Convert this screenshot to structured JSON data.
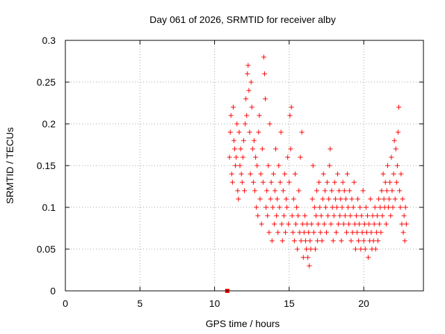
{
  "chart_data": {
    "type": "scatter",
    "title": "Day 061 of 2026, SRMTID for receiver alby",
    "xlabel": "GPS time / hours",
    "ylabel": "SRMTID / TECUs",
    "xlim": [
      0,
      24
    ],
    "ylim": [
      0,
      0.3
    ],
    "x_ticks": [
      0,
      5,
      10,
      15,
      20
    ],
    "x_tick_labels": [
      "0",
      "5",
      "10",
      "15",
      "20"
    ],
    "y_ticks": [
      0,
      0.05,
      0.1,
      0.15,
      0.2,
      0.25,
      0.3
    ],
    "y_tick_labels": [
      "0",
      "0.05",
      "0.1",
      "0.15",
      "0.2",
      "0.25",
      "0.3"
    ],
    "grid": true,
    "legend": "none",
    "colors": {
      "points": "#ff0000",
      "frame": "#000000",
      "grid": "#a0a0a0"
    },
    "marker": "plus",
    "zero_marker": {
      "x": 10.85,
      "y": 0.0,
      "marker": "square"
    },
    "series": [
      {
        "points": [
          [
            11.0,
            0.16
          ],
          [
            11.05,
            0.19
          ],
          [
            11.1,
            0.21
          ],
          [
            11.15,
            0.14
          ],
          [
            11.2,
            0.13
          ],
          [
            11.25,
            0.22
          ],
          [
            11.3,
            0.18
          ],
          [
            11.35,
            0.17
          ],
          [
            11.4,
            0.15
          ],
          [
            11.45,
            0.16
          ],
          [
            11.5,
            0.2
          ],
          [
            11.55,
            0.12
          ],
          [
            11.6,
            0.11
          ],
          [
            11.65,
            0.19
          ],
          [
            11.7,
            0.15
          ],
          [
            11.75,
            0.17
          ],
          [
            11.8,
            0.14
          ],
          [
            11.85,
            0.13
          ],
          [
            11.9,
            0.16
          ],
          [
            11.95,
            0.18
          ],
          [
            12.0,
            0.12
          ],
          [
            12.05,
            0.2
          ],
          [
            12.1,
            0.23
          ],
          [
            12.15,
            0.21
          ],
          [
            12.2,
            0.26
          ],
          [
            12.25,
            0.27
          ],
          [
            12.3,
            0.24
          ],
          [
            12.35,
            0.19
          ],
          [
            12.4,
            0.14
          ],
          [
            12.45,
            0.25
          ],
          [
            12.5,
            0.22
          ],
          [
            12.55,
            0.17
          ],
          [
            12.6,
            0.13
          ],
          [
            12.65,
            0.18
          ],
          [
            12.7,
            0.12
          ],
          [
            12.75,
            0.16
          ],
          [
            12.8,
            0.1
          ],
          [
            12.85,
            0.15
          ],
          [
            12.9,
            0.09
          ],
          [
            12.95,
            0.19
          ],
          [
            13.0,
            0.21
          ],
          [
            13.05,
            0.11
          ],
          [
            13.1,
            0.14
          ],
          [
            13.15,
            0.08
          ],
          [
            13.2,
            0.17
          ],
          [
            13.25,
            0.13
          ],
          [
            13.3,
            0.28
          ],
          [
            13.35,
            0.26
          ],
          [
            13.4,
            0.23
          ],
          [
            13.45,
            0.1
          ],
          [
            13.5,
            0.12
          ],
          [
            13.55,
            0.09
          ],
          [
            13.6,
            0.15
          ],
          [
            13.65,
            0.07
          ],
          [
            13.7,
            0.2
          ],
          [
            13.75,
            0.11
          ],
          [
            13.8,
            0.13
          ],
          [
            13.85,
            0.06
          ],
          [
            13.9,
            0.1
          ],
          [
            13.95,
            0.14
          ],
          [
            14.0,
            0.08
          ],
          [
            14.05,
            0.12
          ],
          [
            14.1,
            0.17
          ],
          [
            14.15,
            0.09
          ],
          [
            14.2,
            0.11
          ],
          [
            14.25,
            0.07
          ],
          [
            14.3,
            0.15
          ],
          [
            14.35,
            0.1
          ],
          [
            14.4,
            0.13
          ],
          [
            14.45,
            0.19
          ],
          [
            14.5,
            0.08
          ],
          [
            14.55,
            0.06
          ],
          [
            14.6,
            0.12
          ],
          [
            14.65,
            0.09
          ],
          [
            14.7,
            0.14
          ],
          [
            14.75,
            0.07
          ],
          [
            14.8,
            0.11
          ],
          [
            14.85,
            0.1
          ],
          [
            14.9,
            0.16
          ],
          [
            14.95,
            0.08
          ],
          [
            15.0,
            0.13
          ],
          [
            15.05,
            0.21
          ],
          [
            15.1,
            0.17
          ],
          [
            15.15,
            0.22
          ],
          [
            15.2,
            0.09
          ],
          [
            15.25,
            0.07
          ],
          [
            15.3,
            0.11
          ],
          [
            15.35,
            0.06
          ],
          [
            15.4,
            0.14
          ],
          [
            15.45,
            0.08
          ],
          [
            15.5,
            0.1
          ],
          [
            15.55,
            0.05
          ],
          [
            15.6,
            0.09
          ],
          [
            15.65,
            0.12
          ],
          [
            15.7,
            0.07
          ],
          [
            15.75,
            0.16
          ],
          [
            15.8,
            0.06
          ],
          [
            15.85,
            0.19
          ],
          [
            15.9,
            0.08
          ],
          [
            15.95,
            0.04
          ],
          [
            16.0,
            0.07
          ],
          [
            16.05,
            0.09
          ],
          [
            16.1,
            0.06
          ],
          [
            16.15,
            0.05
          ],
          [
            16.2,
            0.08
          ],
          [
            16.25,
            0.04
          ],
          [
            16.3,
            0.07
          ],
          [
            16.35,
            0.03
          ],
          [
            16.4,
            0.06
          ],
          [
            16.45,
            0.05
          ],
          [
            16.5,
            0.08
          ],
          [
            16.55,
            0.11
          ],
          [
            16.6,
            0.15
          ],
          [
            16.65,
            0.07
          ],
          [
            16.7,
            0.1
          ],
          [
            16.75,
            0.05
          ],
          [
            16.8,
            0.09
          ],
          [
            16.85,
            0.12
          ],
          [
            16.9,
            0.06
          ],
          [
            16.95,
            0.08
          ],
          [
            17.0,
            0.13
          ],
          [
            17.05,
            0.1
          ],
          [
            17.1,
            0.07
          ],
          [
            17.15,
            0.09
          ],
          [
            17.2,
            0.06
          ],
          [
            17.25,
            0.11
          ],
          [
            17.3,
            0.14
          ],
          [
            17.35,
            0.08
          ],
          [
            17.4,
            0.12
          ],
          [
            17.45,
            0.1
          ],
          [
            17.5,
            0.07
          ],
          [
            17.55,
            0.13
          ],
          [
            17.6,
            0.09
          ],
          [
            17.65,
            0.11
          ],
          [
            17.7,
            0.15
          ],
          [
            17.75,
            0.17
          ],
          [
            17.8,
            0.08
          ],
          [
            17.85,
            0.12
          ],
          [
            17.9,
            0.1
          ],
          [
            17.95,
            0.06
          ],
          [
            18.0,
            0.09
          ],
          [
            18.05,
            0.13
          ],
          [
            18.1,
            0.11
          ],
          [
            18.15,
            0.07
          ],
          [
            18.2,
            0.1
          ],
          [
            18.25,
            0.14
          ],
          [
            18.3,
            0.08
          ],
          [
            18.35,
            0.12
          ],
          [
            18.4,
            0.09
          ],
          [
            18.45,
            0.11
          ],
          [
            18.5,
            0.06
          ],
          [
            18.55,
            0.1
          ],
          [
            18.6,
            0.13
          ],
          [
            18.65,
            0.08
          ],
          [
            18.7,
            0.12
          ],
          [
            18.75,
            0.09
          ],
          [
            18.8,
            0.11
          ],
          [
            18.85,
            0.07
          ],
          [
            18.9,
            0.14
          ],
          [
            18.95,
            0.1
          ],
          [
            19.0,
            0.08
          ],
          [
            19.05,
            0.12
          ],
          [
            19.1,
            0.09
          ],
          [
            19.15,
            0.06
          ],
          [
            19.2,
            0.11
          ],
          [
            19.25,
            0.07
          ],
          [
            19.3,
            0.1
          ],
          [
            19.35,
            0.13
          ],
          [
            19.4,
            0.08
          ],
          [
            19.45,
            0.05
          ],
          [
            19.5,
            0.09
          ],
          [
            19.55,
            0.07
          ],
          [
            19.6,
            0.11
          ],
          [
            19.65,
            0.06
          ],
          [
            19.7,
            0.08
          ],
          [
            19.75,
            0.1
          ],
          [
            19.8,
            0.05
          ],
          [
            19.85,
            0.09
          ],
          [
            19.9,
            0.07
          ],
          [
            19.95,
            0.12
          ],
          [
            20.0,
            0.06
          ],
          [
            20.05,
            0.08
          ],
          [
            20.1,
            0.05
          ],
          [
            20.15,
            0.1
          ],
          [
            20.2,
            0.07
          ],
          [
            20.25,
            0.09
          ],
          [
            20.3,
            0.04
          ],
          [
            20.35,
            0.08
          ],
          [
            20.4,
            0.06
          ],
          [
            20.45,
            0.11
          ],
          [
            20.5,
            0.07
          ],
          [
            20.55,
            0.05
          ],
          [
            20.6,
            0.09
          ],
          [
            20.65,
            0.06
          ],
          [
            20.7,
            0.08
          ],
          [
            20.75,
            0.1
          ],
          [
            20.8,
            0.05
          ],
          [
            20.85,
            0.07
          ],
          [
            20.9,
            0.09
          ],
          [
            20.95,
            0.06
          ],
          [
            21.0,
            0.11
          ],
          [
            21.05,
            0.08
          ],
          [
            21.1,
            0.1
          ],
          [
            21.15,
            0.07
          ],
          [
            21.2,
            0.12
          ],
          [
            21.25,
            0.09
          ],
          [
            21.3,
            0.14
          ],
          [
            21.35,
            0.11
          ],
          [
            21.4,
            0.1
          ],
          [
            21.45,
            0.13
          ],
          [
            21.5,
            0.08
          ],
          [
            21.55,
            0.12
          ],
          [
            21.6,
            0.15
          ],
          [
            21.65,
            0.1
          ],
          [
            21.7,
            0.11
          ],
          [
            21.75,
            0.13
          ],
          [
            21.8,
            0.09
          ],
          [
            21.85,
            0.16
          ],
          [
            21.9,
            0.12
          ],
          [
            21.95,
            0.1
          ],
          [
            22.0,
            0.14
          ],
          [
            22.05,
            0.18
          ],
          [
            22.1,
            0.11
          ],
          [
            22.15,
            0.17
          ],
          [
            22.2,
            0.13
          ],
          [
            22.25,
            0.15
          ],
          [
            22.3,
            0.19
          ],
          [
            22.35,
            0.22
          ],
          [
            22.4,
            0.12
          ],
          [
            22.45,
            0.1
          ],
          [
            22.5,
            0.14
          ],
          [
            22.55,
            0.08
          ],
          [
            22.6,
            0.11
          ],
          [
            22.65,
            0.07
          ],
          [
            22.7,
            0.09
          ],
          [
            22.75,
            0.06
          ],
          [
            22.8,
            0.1
          ],
          [
            22.85,
            0.08
          ]
        ]
      }
    ]
  }
}
